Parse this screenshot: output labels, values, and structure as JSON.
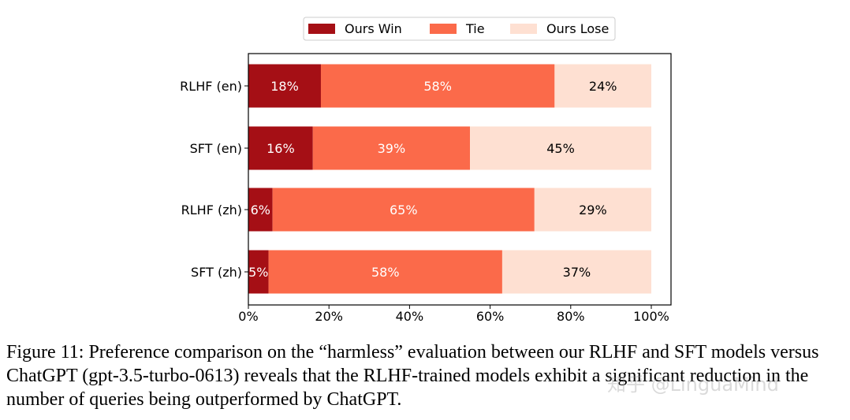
{
  "chart_data": {
    "type": "bar",
    "orientation": "horizontal",
    "stacked": true,
    "categories": [
      "RLHF (en)",
      "SFT (en)",
      "RLHF (zh)",
      "SFT (zh)"
    ],
    "series": [
      {
        "name": "Ours Win",
        "color": "#a50f15",
        "label_color": "#ffffff",
        "values": [
          18,
          16,
          6,
          5
        ]
      },
      {
        "name": "Tie",
        "color": "#fb6a4a",
        "label_color": "#ffffff",
        "values": [
          58,
          39,
          65,
          58
        ]
      },
      {
        "name": "Ours Lose",
        "color": "#fee0d2",
        "label_color": "#000000",
        "values": [
          24,
          45,
          29,
          37
        ]
      }
    ],
    "xlim": [
      0,
      100
    ],
    "xticks": [
      "0%",
      "20%",
      "40%",
      "60%",
      "80%",
      "100%"
    ],
    "legend": "top-center",
    "grid": false
  },
  "caption": "Figure 11: Preference comparison on the “harmless” evaluation between our RLHF and SFT models versus ChatGPT (gpt-3.5-turbo-0613) reveals that the RLHF-trained models exhibit a significant reduction in the number of queries being outperformed by ChatGPT.",
  "watermark": "知乎 @LinguaMind"
}
